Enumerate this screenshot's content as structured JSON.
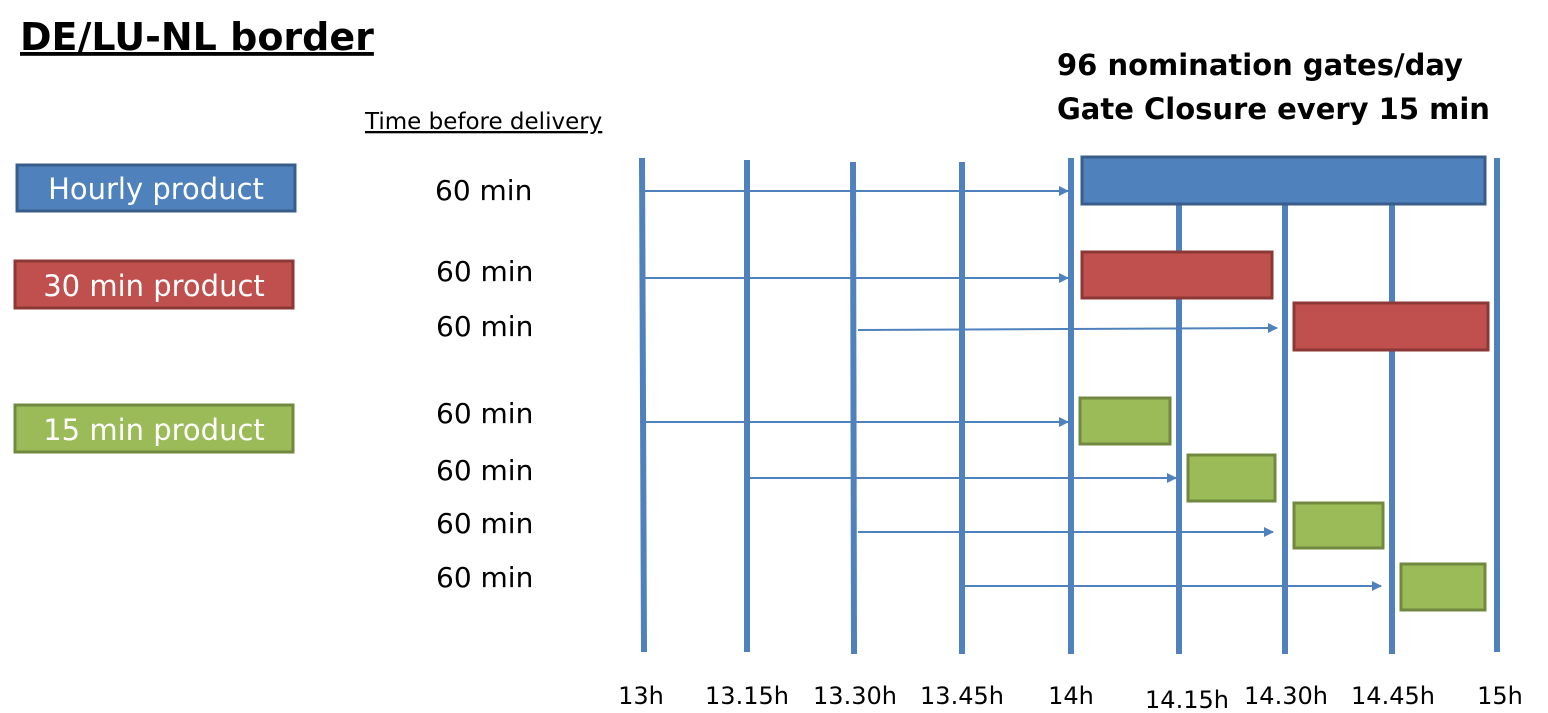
{
  "title": "DE/LU-NL border",
  "header": {
    "line1": "96 nomination gates/day",
    "line2": "Gate Closure every 15 min"
  },
  "column_label": "Time before delivery",
  "products": [
    "Hourly product",
    "30 min product",
    "15 min product"
  ],
  "rows": [
    "60 min",
    "60 min",
    "60 min",
    "60 min",
    "60 min",
    "60 min",
    "60 min"
  ],
  "times": [
    "13h",
    "13.15h",
    "13.30h",
    "13.45h",
    "14h",
    "14.15h",
    "14.30h",
    "14.45h",
    "15h"
  ]
}
